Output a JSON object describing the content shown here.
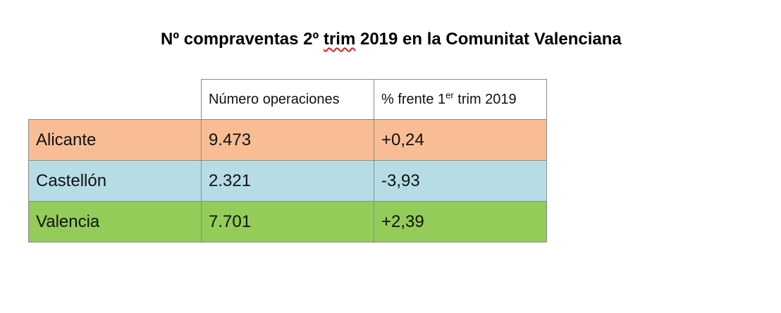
{
  "title": {
    "part1": "Nº compraventas 2º ",
    "part2": "trim",
    "part3": " 2019 en la Comunitat Valenciana"
  },
  "table": {
    "headers": {
      "operations": "Número operaciones",
      "change_prefix": "% frente 1",
      "change_sup": "er",
      "change_suffix": " trim 2019"
    },
    "rows": [
      {
        "province": "Alicante",
        "operations": "9.473",
        "change": "+0,24",
        "color": "#f8bd94"
      },
      {
        "province": "Castellón",
        "operations": "2.321",
        "change": "-3,93",
        "color": "#b6dde6"
      },
      {
        "province": "Valencia",
        "operations": "7.701",
        "change": "+2,39",
        "color": "#93cc58"
      }
    ]
  }
}
